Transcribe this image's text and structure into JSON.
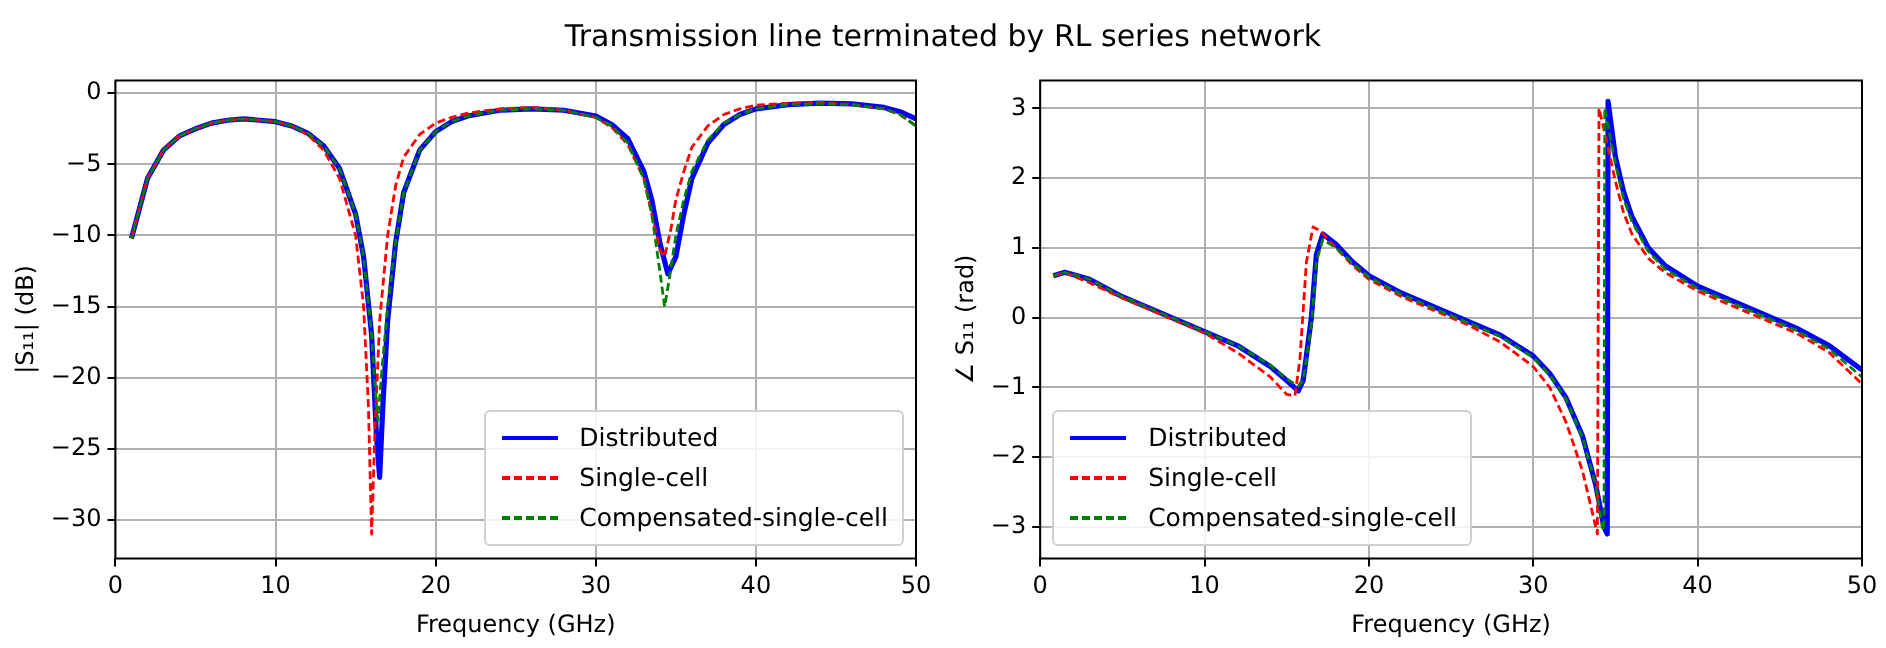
{
  "chart_data": [
    {
      "type": "line",
      "title": "Transmission line terminated by RL series network",
      "xlabel": "Frequency (GHz)",
      "ylabel": "|S₁₁| (dB)",
      "xlim": [
        0,
        50
      ],
      "xticks": [
        0,
        10,
        20,
        30,
        40,
        50
      ],
      "ylim": [
        -32.7,
        0.9
      ],
      "yticks": [
        -30,
        -25,
        -20,
        -15,
        -10,
        -5,
        0
      ],
      "grid": true,
      "legend": "bottom right",
      "series": [
        {
          "name": "Distributed",
          "color": "#0000ff",
          "line_style": "solid",
          "x": [
            1,
            2,
            3,
            4,
            5,
            6,
            7,
            8,
            9,
            10,
            11,
            12,
            13,
            14,
            15,
            15.5,
            16,
            16.3,
            16.5,
            16.7,
            17,
            17.5,
            18,
            19,
            20,
            21,
            22,
            24,
            26,
            28,
            30,
            31,
            32,
            33,
            33.5,
            34,
            34.5,
            35,
            35.5,
            36,
            37,
            38,
            39,
            40,
            42,
            44,
            46,
            48,
            49,
            50
          ],
          "values": [
            -10.2,
            -6,
            -4,
            -3,
            -2.5,
            -2.1,
            -1.9,
            -1.8,
            -1.9,
            -2,
            -2.3,
            -2.8,
            -3.7,
            -5.3,
            -8.5,
            -11.5,
            -17,
            -24,
            -27,
            -22,
            -16,
            -10.5,
            -7,
            -4,
            -2.7,
            -2,
            -1.6,
            -1.2,
            -1.1,
            -1.2,
            -1.6,
            -2.2,
            -3.2,
            -5.5,
            -7.5,
            -10.5,
            -12.7,
            -11.5,
            -8.5,
            -6,
            -3.5,
            -2.2,
            -1.5,
            -1.1,
            -0.8,
            -0.7,
            -0.75,
            -1,
            -1.3,
            -1.8
          ]
        },
        {
          "name": "Single-cell",
          "color": "#ff0000",
          "line_style": "dashed",
          "x": [
            1,
            2,
            3,
            4,
            5,
            6,
            7,
            8,
            9,
            10,
            11,
            12,
            13,
            14,
            15,
            15.5,
            15.8,
            16,
            16.2,
            16.5,
            17,
            17.5,
            18,
            19,
            20,
            21,
            22,
            24,
            26,
            28,
            30,
            31,
            32,
            33,
            33.5,
            34,
            34.3,
            34.7,
            35,
            35.5,
            36,
            37,
            38,
            39,
            40,
            42,
            44,
            46,
            48,
            49,
            50
          ],
          "values": [
            -10.2,
            -6,
            -4,
            -3,
            -2.5,
            -2.1,
            -1.9,
            -1.8,
            -1.9,
            -2,
            -2.3,
            -2.9,
            -4,
            -6,
            -10,
            -15,
            -22,
            -31,
            -24,
            -16,
            -10,
            -6.5,
            -4.5,
            -2.9,
            -2.1,
            -1.7,
            -1.4,
            -1.1,
            -1,
            -1.2,
            -1.7,
            -2.4,
            -3.6,
            -6,
            -8.5,
            -11,
            -11.5,
            -9.5,
            -7.5,
            -5.5,
            -3.8,
            -2.3,
            -1.5,
            -1.1,
            -0.85,
            -0.7,
            -0.65,
            -0.8,
            -1.1,
            -1.5,
            -2.3
          ]
        },
        {
          "name": "Compensated-single-cell",
          "color": "#008000",
          "line_style": "dashed",
          "x": [
            1,
            2,
            3,
            4,
            5,
            6,
            7,
            8,
            9,
            10,
            11,
            12,
            13,
            14,
            15,
            15.5,
            16,
            16.3,
            16.4,
            16.6,
            17,
            17.5,
            18,
            19,
            20,
            21,
            22,
            24,
            26,
            28,
            30,
            31,
            32,
            33,
            33.5,
            34,
            34.3,
            34.6,
            35,
            35.5,
            36,
            37,
            38,
            39,
            40,
            42,
            44,
            46,
            48,
            49,
            50
          ],
          "values": [
            -10.2,
            -6,
            -4,
            -3,
            -2.5,
            -2.1,
            -1.9,
            -1.8,
            -1.9,
            -2,
            -2.3,
            -2.8,
            -3.7,
            -5.3,
            -8.5,
            -11.5,
            -17,
            -22,
            -23,
            -20,
            -15,
            -10.5,
            -7,
            -4,
            -2.7,
            -2,
            -1.6,
            -1.2,
            -1.1,
            -1.2,
            -1.7,
            -2.3,
            -3.5,
            -6,
            -8.5,
            -12.5,
            -15,
            -13,
            -10,
            -7.5,
            -5.5,
            -3.3,
            -2.1,
            -1.5,
            -1.1,
            -0.8,
            -0.75,
            -0.8,
            -1.1,
            -1.5,
            -2.3
          ]
        }
      ]
    },
    {
      "type": "line",
      "xlabel": "Frequency (GHz)",
      "ylabel": "∠ S₁₁ (rad)",
      "xlim": [
        0,
        50
      ],
      "xticks": [
        0,
        10,
        20,
        30,
        40,
        50
      ],
      "ylim": [
        -3.45,
        3.4
      ],
      "yticks": [
        -3,
        -2,
        -1,
        0,
        1,
        2,
        3
      ],
      "grid": true,
      "legend": "bottom left",
      "series": [
        {
          "name": "Distributed",
          "color": "#0000ff",
          "line_style": "solid",
          "x": [
            0.8,
            1.5,
            3,
            5,
            8,
            10,
            12,
            14,
            15,
            15.7,
            16,
            16.5,
            16.8,
            17.2,
            18,
            19,
            20,
            22,
            24,
            26,
            28,
            30,
            31,
            32,
            33,
            33.8,
            34.3,
            34.5,
            34.55,
            35,
            35.5,
            36,
            37,
            38,
            40,
            42,
            44,
            46,
            48,
            50
          ],
          "values": [
            0.6,
            0.65,
            0.55,
            0.3,
            0,
            -0.2,
            -0.4,
            -0.7,
            -0.9,
            -1.05,
            -0.9,
            0,
            0.9,
            1.2,
            1.05,
            0.8,
            0.6,
            0.35,
            0.15,
            -0.05,
            -0.25,
            -0.55,
            -0.8,
            -1.15,
            -1.7,
            -2.4,
            -3,
            -3.1,
            3.1,
            2.3,
            1.8,
            1.45,
            1,
            0.75,
            0.45,
            0.25,
            0.05,
            -0.15,
            -0.4,
            -0.75
          ]
        },
        {
          "name": "Single-cell",
          "color": "#ff0000",
          "line_style": "dashed",
          "x": [
            0.8,
            1.5,
            3,
            5,
            7,
            10,
            12,
            14,
            15,
            15.5,
            15.8,
            16.2,
            16.6,
            17,
            18,
            19,
            20,
            22,
            24,
            26,
            28,
            30,
            31,
            32,
            33,
            33.7,
            33.9,
            34,
            34.4,
            35,
            35.5,
            36,
            37,
            38,
            40,
            42,
            44,
            46,
            48,
            50
          ],
          "values": [
            0.6,
            0.65,
            0.5,
            0.28,
            0.08,
            -0.22,
            -0.5,
            -0.85,
            -1.1,
            -1.12,
            -0.6,
            0.8,
            1.3,
            1.25,
            1,
            0.75,
            0.55,
            0.3,
            0.1,
            -0.1,
            -0.35,
            -0.7,
            -1,
            -1.5,
            -2.2,
            -2.9,
            -3.1,
            3,
            2.6,
            1.95,
            1.5,
            1.2,
            0.85,
            0.65,
            0.38,
            0.18,
            -0.02,
            -0.22,
            -0.5,
            -0.95
          ]
        },
        {
          "name": "Compensated-single-cell",
          "color": "#008000",
          "line_style": "dashed",
          "x": [
            0.8,
            1.5,
            3,
            5,
            8,
            10,
            12,
            14,
            15,
            15.7,
            16,
            16.5,
            16.8,
            17.2,
            18,
            19,
            20,
            22,
            24,
            26,
            28,
            30,
            31,
            32,
            33,
            33.8,
            34.2,
            34.3,
            34.35,
            35,
            35.5,
            36,
            37,
            38,
            40,
            42,
            44,
            46,
            48,
            50
          ],
          "values": [
            0.6,
            0.65,
            0.55,
            0.3,
            0,
            -0.2,
            -0.4,
            -0.68,
            -0.88,
            -0.98,
            -0.9,
            -0.1,
            0.8,
            1.12,
            1.0,
            0.78,
            0.58,
            0.33,
            0.13,
            -0.07,
            -0.27,
            -0.57,
            -0.82,
            -1.17,
            -1.72,
            -2.4,
            -3,
            -3.05,
            3,
            2.2,
            1.7,
            1.38,
            0.95,
            0.7,
            0.42,
            0.22,
            0.02,
            -0.18,
            -0.45,
            -0.85
          ]
        }
      ]
    }
  ]
}
